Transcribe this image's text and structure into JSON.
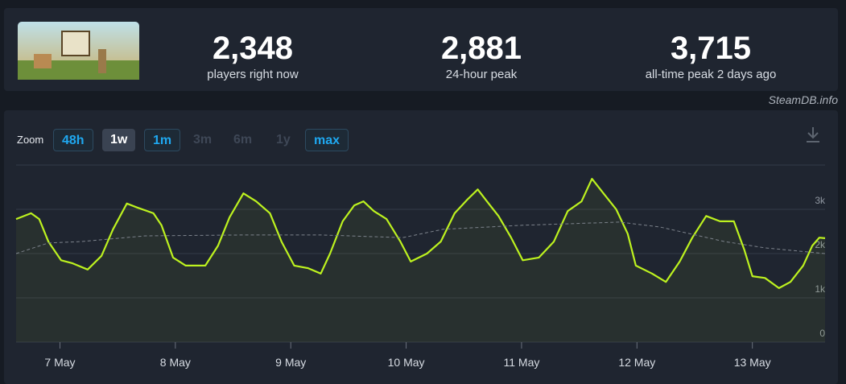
{
  "stats": [
    {
      "value": "2,348",
      "label": "players right now"
    },
    {
      "value": "2,881",
      "label": "24-hour peak"
    },
    {
      "value": "3,715",
      "label": "all-time peak 2 days ago"
    }
  ],
  "source": "SteamDB.info",
  "zoom": {
    "label": "Zoom",
    "options": [
      {
        "text": "48h",
        "state": "link"
      },
      {
        "text": "1w",
        "state": "active"
      },
      {
        "text": "1m",
        "state": "link"
      },
      {
        "text": "3m",
        "state": "disabled"
      },
      {
        "text": "6m",
        "state": "disabled"
      },
      {
        "text": "1y",
        "state": "disabled"
      },
      {
        "text": "max",
        "state": "link"
      }
    ]
  },
  "chart_data": {
    "type": "line",
    "xlim": [
      -0.38,
      6.63
    ],
    "xticks": [
      {
        "value": 0,
        "label": "7 May"
      },
      {
        "value": 1,
        "label": "8 May"
      },
      {
        "value": 2,
        "label": "9 May"
      },
      {
        "value": 3,
        "label": "10 May"
      },
      {
        "value": 4,
        "label": "11 May"
      },
      {
        "value": 5,
        "label": "12 May"
      },
      {
        "value": 6,
        "label": "13 May"
      }
    ],
    "ylim": [
      0,
      4000
    ],
    "yticks": [
      0,
      {
        "value": 1000,
        "label": "1k"
      },
      {
        "value": 2000,
        "label": "2k"
      },
      {
        "value": 3000,
        "label": "3k"
      }
    ],
    "grid": true,
    "series": [
      {
        "color": "#bdf21f",
        "fill": true,
        "dash": false,
        "x": [
          -0.38,
          -0.25,
          -0.18,
          -0.1,
          0.01,
          0.11,
          0.24,
          0.36,
          0.46,
          0.58,
          0.67,
          0.81,
          0.88,
          0.98,
          1.09,
          1.26,
          1.37,
          1.47,
          1.59,
          1.7,
          1.82,
          1.92,
          2.03,
          2.15,
          2.26,
          2.34,
          2.45,
          2.55,
          2.63,
          2.72,
          2.83,
          2.95,
          3.04,
          3.18,
          3.3,
          3.42,
          3.53,
          3.62,
          3.7,
          3.8,
          3.91,
          4.01,
          4.15,
          4.28,
          4.4,
          4.52,
          4.61,
          4.71,
          4.82,
          4.92,
          4.99,
          5.13,
          5.25,
          5.37,
          5.48,
          5.6,
          5.72,
          5.84,
          5.93,
          6.0,
          6.11,
          6.23,
          6.33,
          6.44,
          6.52,
          6.58,
          6.63
        ],
        "values": [
          2780,
          2910,
          2780,
          2270,
          1850,
          1780,
          1640,
          1950,
          2550,
          3130,
          3040,
          2910,
          2640,
          1910,
          1730,
          1730,
          2180,
          2820,
          3360,
          3180,
          2910,
          2270,
          1730,
          1670,
          1550,
          2000,
          2730,
          3090,
          3180,
          2960,
          2780,
          2270,
          1820,
          2000,
          2270,
          2910,
          3220,
          3450,
          3180,
          2850,
          2360,
          1850,
          1910,
          2270,
          2960,
          3180,
          3690,
          3360,
          3000,
          2450,
          1730,
          1550,
          1360,
          1820,
          2360,
          2850,
          2730,
          2730,
          2090,
          1490,
          1450,
          1220,
          1360,
          1730,
          2180,
          2360,
          2348
        ]
      },
      {
        "color": "#7d838c",
        "fill": false,
        "dash": true,
        "x": [
          -0.38,
          -0.1,
          0.18,
          0.74,
          1.57,
          2.27,
          2.97,
          3.32,
          4.01,
          4.85,
          5.2,
          5.76,
          6.11,
          6.63
        ],
        "values": [
          2000,
          2240,
          2270,
          2400,
          2420,
          2420,
          2360,
          2550,
          2640,
          2710,
          2600,
          2270,
          2130,
          2000
        ]
      }
    ]
  }
}
